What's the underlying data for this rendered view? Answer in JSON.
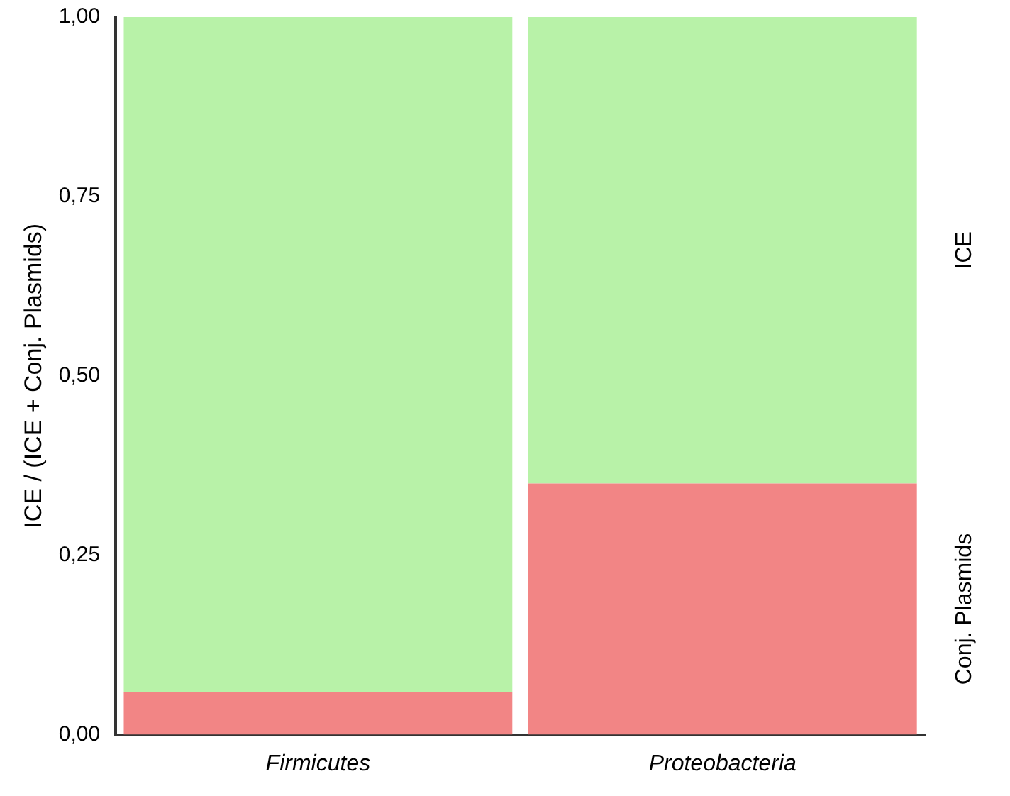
{
  "chart_data": {
    "type": "bar",
    "stacked": true,
    "ylabel": "ICE / (ICE + Conj. Plasmids)",
    "categories": [
      "Firmicutes",
      "Proteobacteria"
    ],
    "series": [
      {
        "name": "Conj. Plasmids",
        "color": "#f28585",
        "values": [
          0.06,
          0.35
        ]
      },
      {
        "name": "ICE",
        "color": "#b8f2a8",
        "values": [
          0.94,
          0.65
        ]
      }
    ],
    "ylim": [
      0,
      1
    ],
    "yticks": [
      {
        "value": 0,
        "label": "0,00"
      },
      {
        "value": 0.25,
        "label": "0,25"
      },
      {
        "value": 0.5,
        "label": "0,50"
      },
      {
        "value": 0.75,
        "label": "0,75"
      },
      {
        "value": 1,
        "label": "1,00"
      }
    ],
    "grid": false,
    "legend": false
  }
}
